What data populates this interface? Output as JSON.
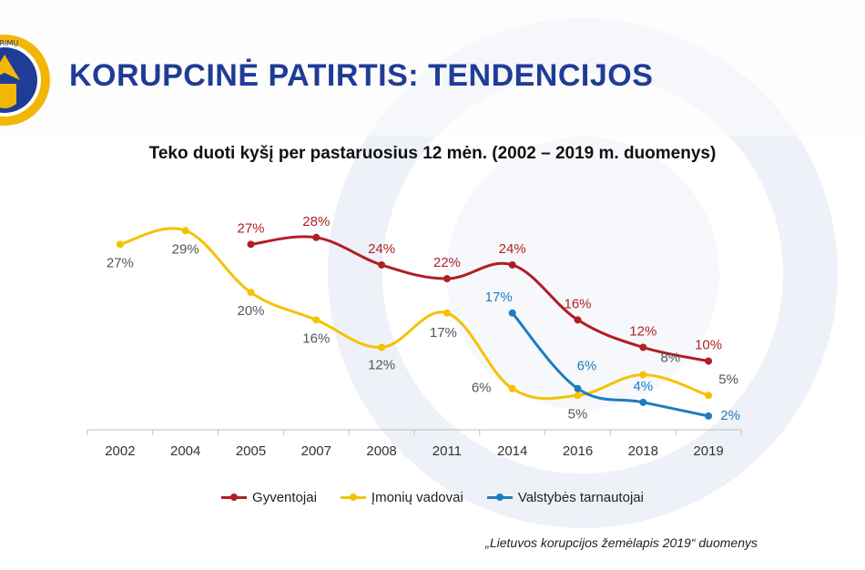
{
  "header": {
    "logo_text": "TYRIMŲ TARNYBA",
    "title": "KORUPCINĖ  PATIRTIS: TENDENCIJOS"
  },
  "chart_data": {
    "type": "line",
    "title": "Teko duoti kyšį per pastaruosius 12 mėn. (2002 – 2019 m. duomenys)",
    "categories": [
      "2002",
      "2004",
      "2005",
      "2007",
      "2008",
      "2011",
      "2014",
      "2016",
      "2018",
      "2019"
    ],
    "ylim": [
      0,
      35
    ],
    "value_suffix": "%",
    "legend_position": "bottom",
    "series": [
      {
        "name": "Gyventojai",
        "color": "#b01f24",
        "label_color": "#b01f24",
        "values": [
          null,
          null,
          27,
          28,
          24,
          22,
          24,
          16,
          12,
          10
        ]
      },
      {
        "name": "Įmonių vadovai",
        "color": "#f5c200",
        "label_color": "#555555",
        "values": [
          27,
          29,
          20,
          16,
          12,
          17,
          6,
          5,
          8,
          5
        ]
      },
      {
        "name": "Valstybės tarnautojai",
        "color": "#1f7bbf",
        "label_color": "#1f7bbf",
        "values": [
          null,
          null,
          null,
          null,
          null,
          null,
          17,
          6,
          4,
          2
        ]
      }
    ]
  },
  "footer": {
    "source": "„Lietuvos korupcijos žemėlapis 2019“ duomenys"
  }
}
